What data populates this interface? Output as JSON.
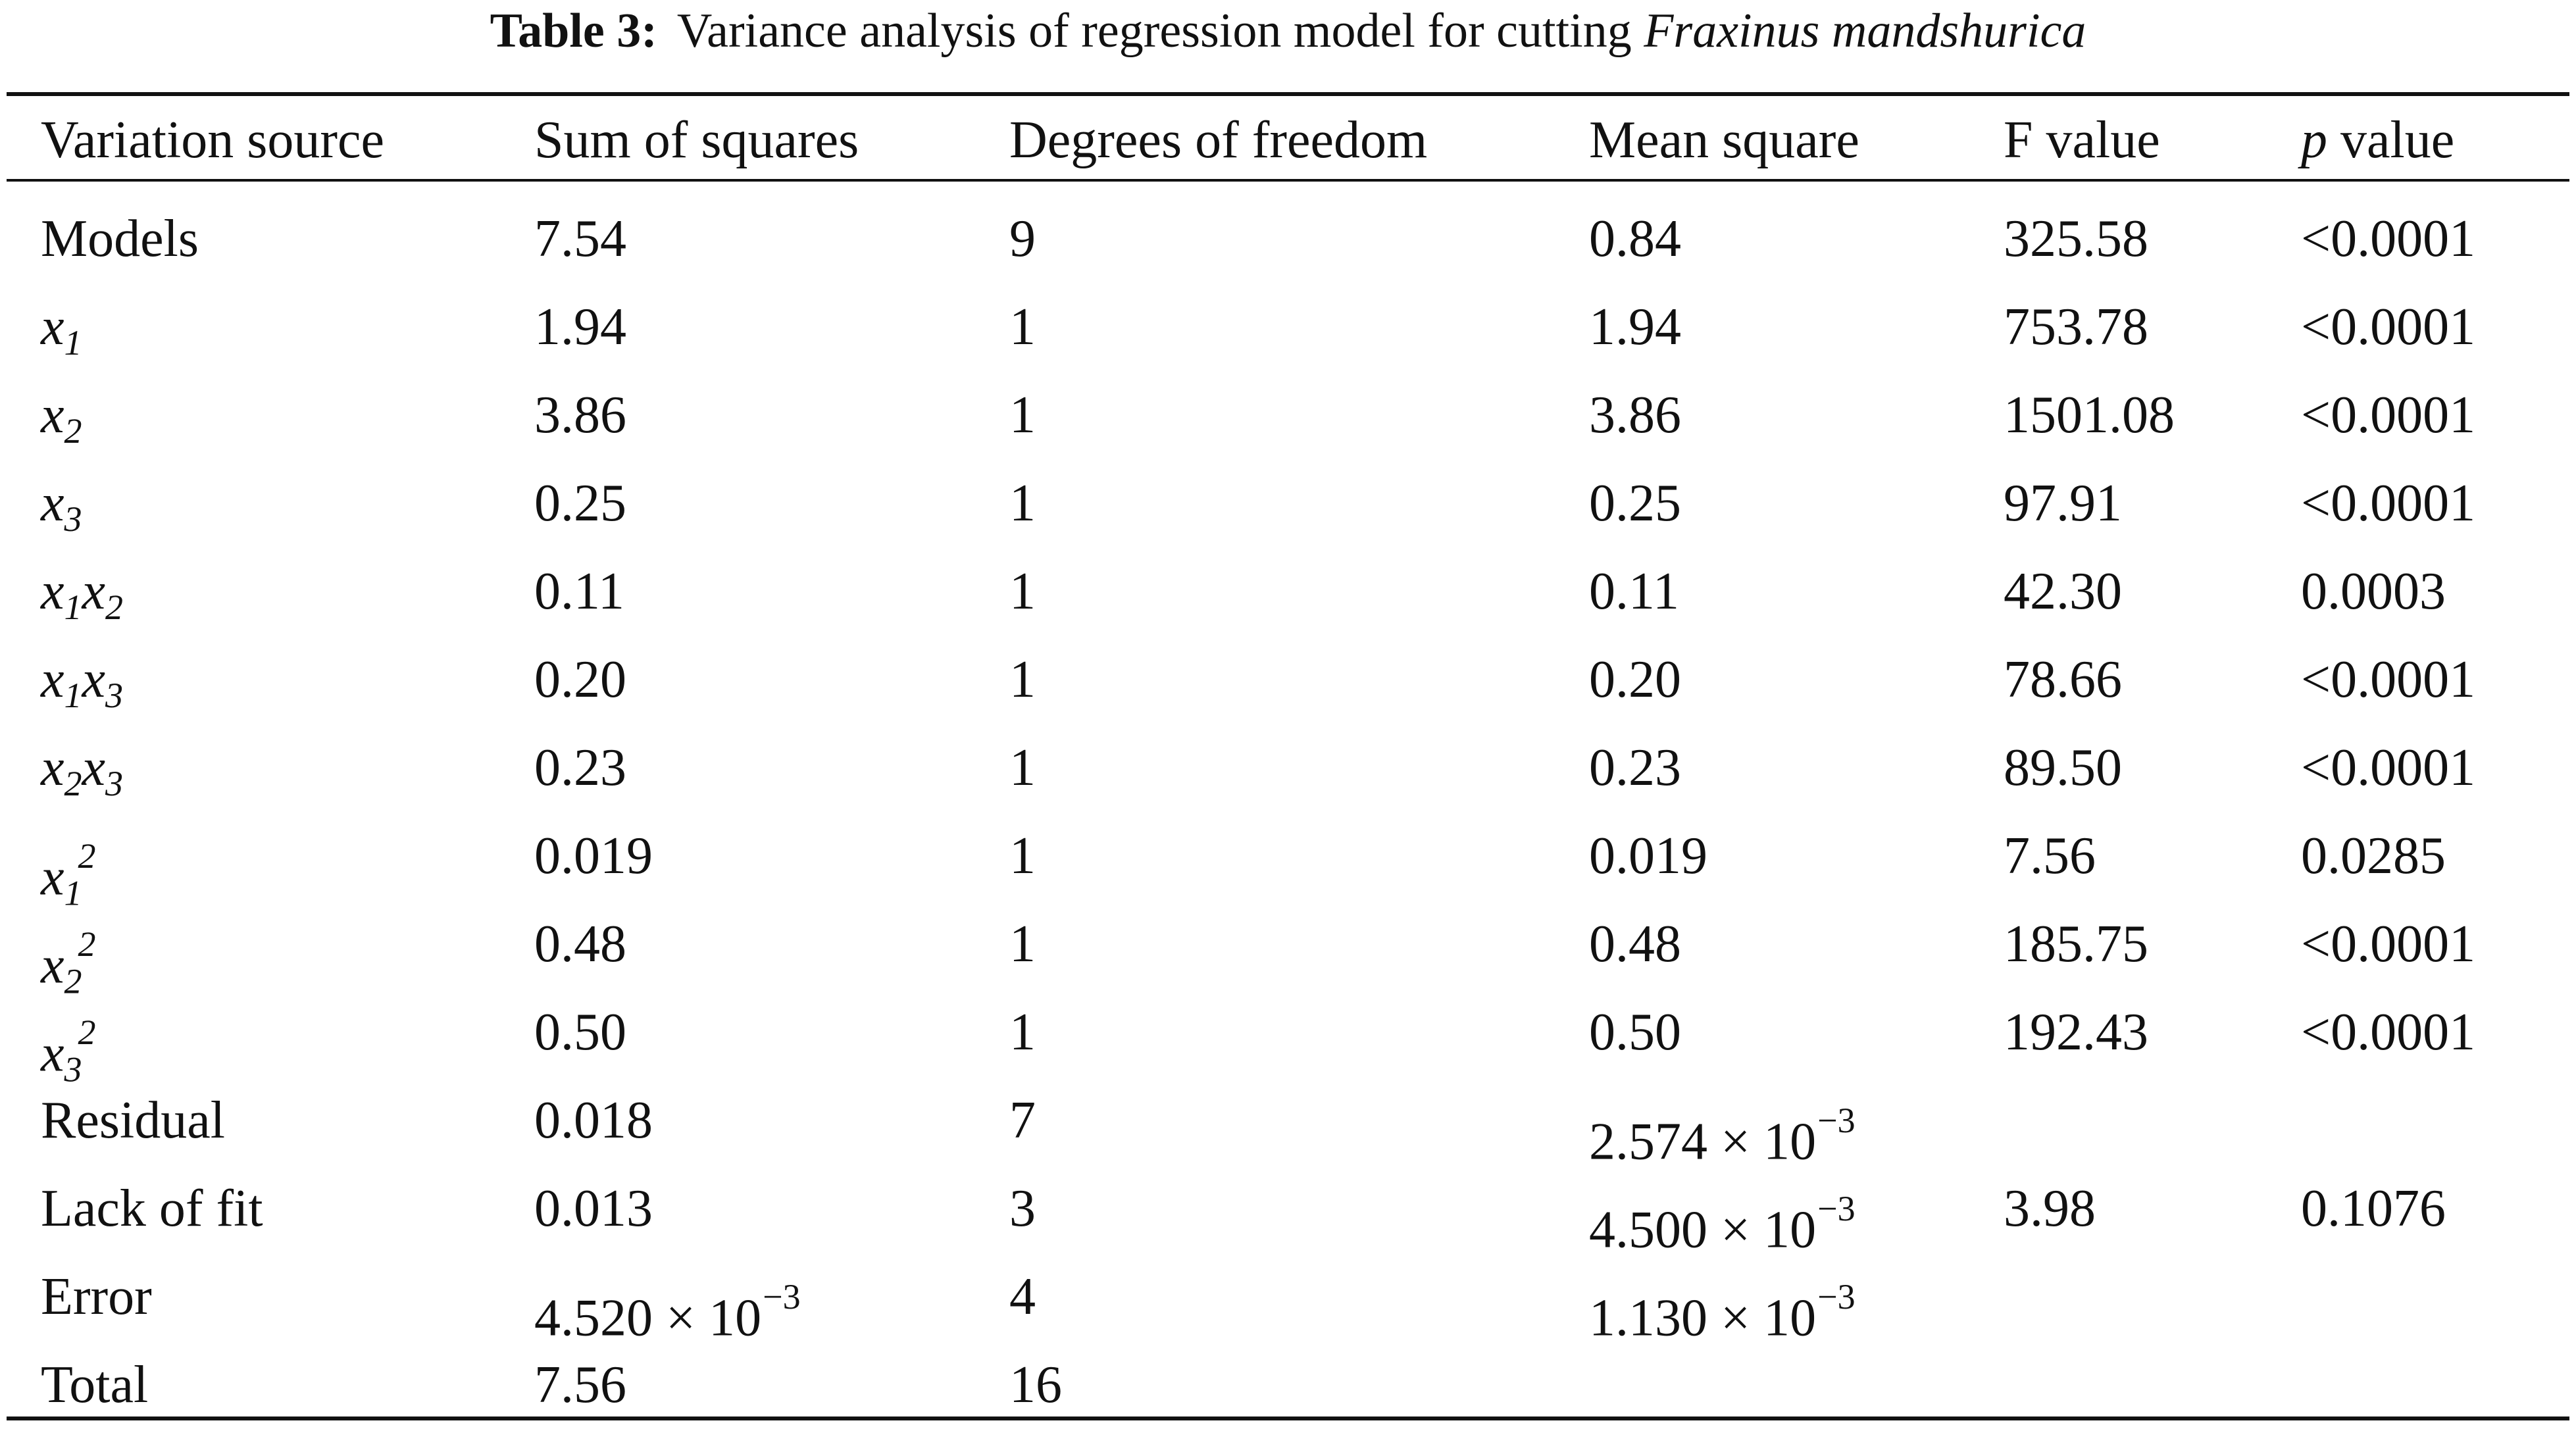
{
  "caption": {
    "label": "Table 3:",
    "text": "Variance analysis of regression model for cutting",
    "species": "Fraxinus mandshurica"
  },
  "table": {
    "headers": [
      "Variation source",
      "Sum of squares",
      "Degrees of freedom",
      "Mean square",
      "F value",
      "p value"
    ],
    "rows": [
      [
        "Models",
        "7.54",
        "9",
        "0.84",
        "325.58",
        "<0.0001"
      ],
      [
        "x1",
        "1.94",
        "1",
        "1.94",
        "753.78",
        "<0.0001"
      ],
      [
        "x2",
        "3.86",
        "1",
        "3.86",
        "1501.08",
        "<0.0001"
      ],
      [
        "x3",
        "0.25",
        "1",
        "0.25",
        "97.91",
        "<0.0001"
      ],
      [
        "x1x2",
        "0.11",
        "1",
        "0.11",
        "42.30",
        "0.0003"
      ],
      [
        "x1x3",
        "0.20",
        "1",
        "0.20",
        "78.66",
        "<0.0001"
      ],
      [
        "x2x3",
        "0.23",
        "1",
        "0.23",
        "89.50",
        "<0.0001"
      ],
      [
        "x1^2",
        "0.019",
        "1",
        "0.019",
        "7.56",
        "0.0285"
      ],
      [
        "x2^2",
        "0.48",
        "1",
        "0.48",
        "185.75",
        "<0.0001"
      ],
      [
        "x3^2",
        "0.50",
        "1",
        "0.50",
        "192.43",
        "<0.0001"
      ],
      [
        "Residual",
        "0.018",
        "7",
        "2.574 × 10^−3",
        "",
        ""
      ],
      [
        "Lack of fit",
        "0.013",
        "3",
        "4.500 × 10^−3",
        "3.98",
        "0.1076"
      ],
      [
        "Error",
        "4.520 × 10^−3",
        "4",
        "1.130 × 10^−3",
        "",
        ""
      ],
      [
        "Total",
        "7.56",
        "16",
        "",
        "",
        ""
      ]
    ]
  }
}
